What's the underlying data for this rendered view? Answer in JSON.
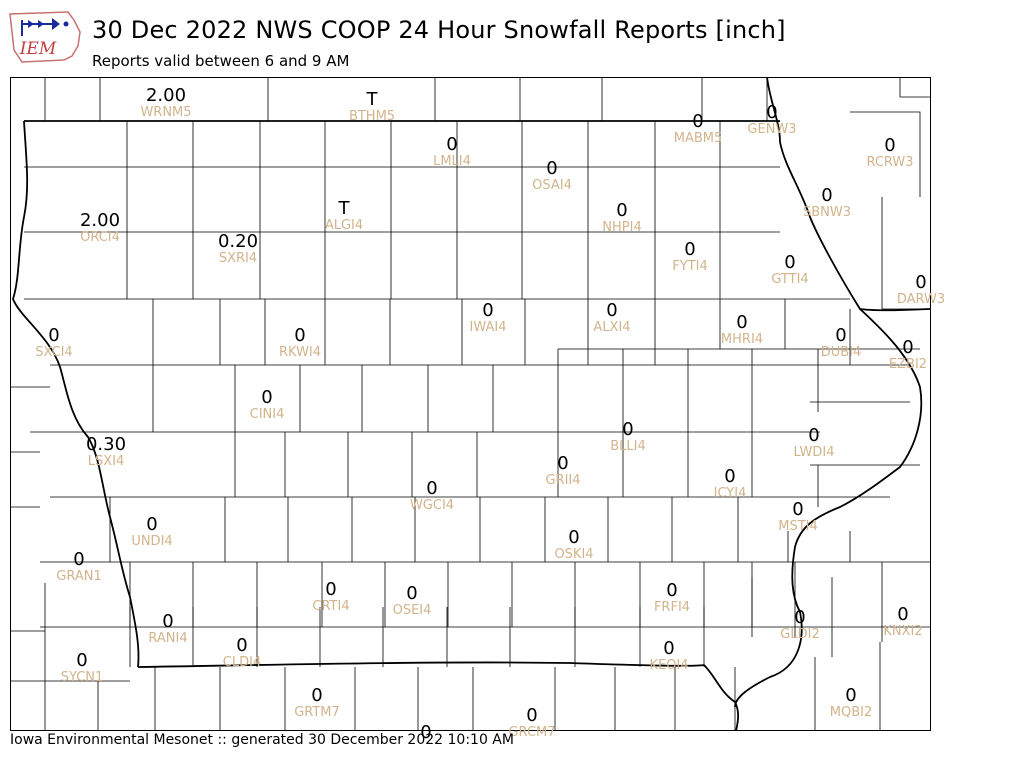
{
  "header": {
    "title": "30 Dec 2022 NWS COOP 24 Hour Snowfall Reports [inch]",
    "subtitle": "Reports valid between 6 and 9 AM"
  },
  "logo": {
    "text": "IEM",
    "icon": "iem-logo-icon"
  },
  "footer": "Iowa Environmental Mesonet :: generated 30 December 2022 10:10 AM",
  "colors": {
    "value": "#000000",
    "station_id": "#d2b48c",
    "border": "#000000"
  },
  "stations": [
    {
      "id": "WRNM5",
      "value": "2.00"
    },
    {
      "id": "BTHM5",
      "value": "T"
    },
    {
      "id": "MABM5",
      "value": "0"
    },
    {
      "id": "GENW3",
      "value": "0"
    },
    {
      "id": "RCRW3",
      "value": "0"
    },
    {
      "id": "LMLI4",
      "value": "0"
    },
    {
      "id": "OSAI4",
      "value": "0"
    },
    {
      "id": "SBNW3",
      "value": "0"
    },
    {
      "id": "NHPI4",
      "value": "0"
    },
    {
      "id": "ALGI4",
      "value": "T"
    },
    {
      "id": "ORCI4",
      "value": "2.00"
    },
    {
      "id": "SXRI4",
      "value": "0.20"
    },
    {
      "id": "FYTI4",
      "value": "0"
    },
    {
      "id": "GTTI4",
      "value": "0"
    },
    {
      "id": "DARW3",
      "value": "0"
    },
    {
      "id": "IWAI4",
      "value": "0"
    },
    {
      "id": "ALXI4",
      "value": "0"
    },
    {
      "id": "SXCI4",
      "value": "0"
    },
    {
      "id": "RKWI4",
      "value": "0"
    },
    {
      "id": "MHRI4",
      "value": "0"
    },
    {
      "id": "DUBI4",
      "value": "0"
    },
    {
      "id": "EZBI2",
      "value": "0"
    },
    {
      "id": "CINI4",
      "value": "0"
    },
    {
      "id": "BLLI4",
      "value": "0"
    },
    {
      "id": "LWDI4",
      "value": "0"
    },
    {
      "id": "LSXI4",
      "value": "0.30"
    },
    {
      "id": "GRII4",
      "value": "0"
    },
    {
      "id": "ICYI4",
      "value": "0"
    },
    {
      "id": "WGCI4",
      "value": "0"
    },
    {
      "id": "MSTI4",
      "value": "0"
    },
    {
      "id": "UNDI4",
      "value": "0"
    },
    {
      "id": "OSKI4",
      "value": "0"
    },
    {
      "id": "GRAN1",
      "value": "0"
    },
    {
      "id": "CRTI4",
      "value": "0"
    },
    {
      "id": "OSEI4",
      "value": "0"
    },
    {
      "id": "FRFI4",
      "value": "0"
    },
    {
      "id": "KNXI2",
      "value": "0"
    },
    {
      "id": "RANI4",
      "value": "0"
    },
    {
      "id": "CLDI4",
      "value": "0"
    },
    {
      "id": "KEOI4",
      "value": "0"
    },
    {
      "id": "GLDI2",
      "value": "0"
    },
    {
      "id": "SYCN1",
      "value": "0"
    },
    {
      "id": "GRTM7",
      "value": "0"
    },
    {
      "id": "MQBI2",
      "value": "0"
    },
    {
      "id": "GRCM7",
      "value": "0"
    },
    {
      "id": "",
      "value": "0"
    }
  ]
}
